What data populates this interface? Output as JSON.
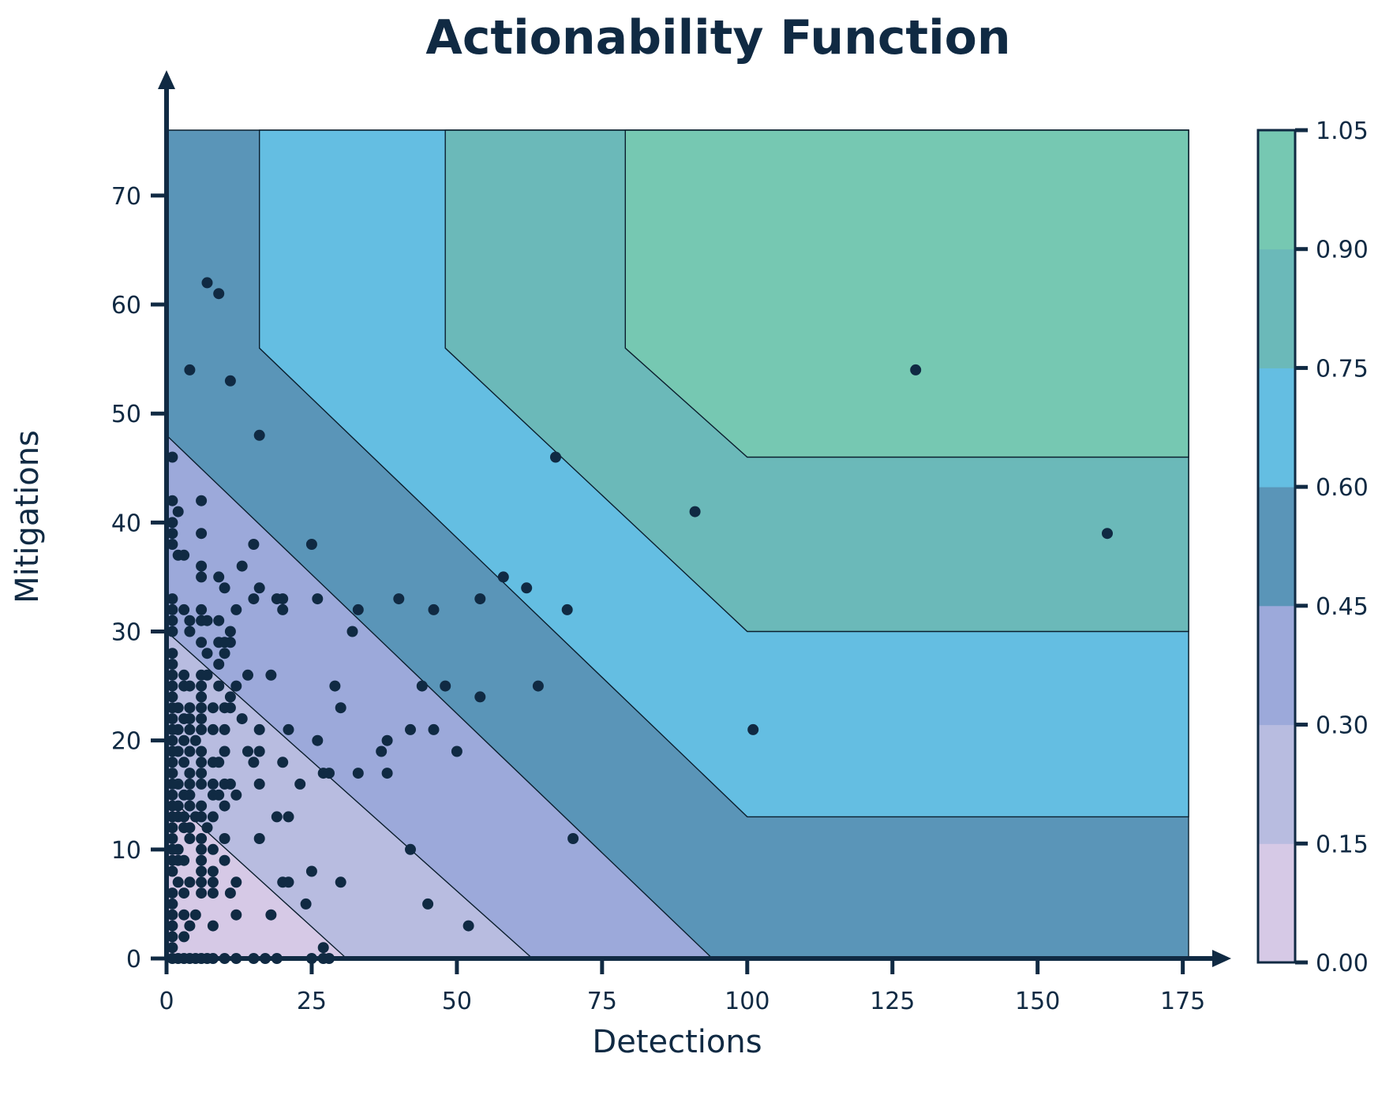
{
  "chart_data": {
    "type": "contour",
    "title": "Actionability Function",
    "xlabel": "Detections",
    "ylabel": "Mitigations",
    "xlim": [
      0,
      176
    ],
    "ylim": [
      0,
      76
    ],
    "x_ticks": [
      "0",
      "25",
      "50",
      "75",
      "100",
      "125",
      "150",
      "175"
    ],
    "y_ticks": [
      "0",
      "10",
      "20",
      "30",
      "40",
      "50",
      "60",
      "70"
    ],
    "colorbar": {
      "ticks": [
        "0.00",
        "0.15",
        "0.30",
        "0.45",
        "0.60",
        "0.75",
        "0.90",
        "1.05"
      ],
      "colors": [
        "#d6c9e6",
        "#b8bce0",
        "#9ca9da",
        "#5a95b8",
        "#64bee2",
        "#6bb9b9",
        "#76c8b2"
      ]
    },
    "contour_levels": [
      {
        "level": "0.00-0.15",
        "color": "#d6c9e6",
        "polygon": [
          [
            0,
            0
          ],
          [
            31,
            0
          ],
          [
            0,
            15
          ]
        ]
      },
      {
        "level": "0.15-0.30",
        "color": "#b8bce0",
        "polygon": [
          [
            0,
            0
          ],
          [
            63,
            0
          ],
          [
            0,
            30
          ]
        ]
      },
      {
        "level": "0.30-0.45",
        "color": "#9ca9da",
        "polygon": [
          [
            0,
            0
          ],
          [
            94,
            0
          ],
          [
            0,
            48
          ]
        ]
      },
      {
        "level": "0.45-0.60",
        "color": "#5a95b8",
        "polygon": [
          [
            0,
            0
          ],
          [
            176,
            0
          ],
          [
            176,
            76
          ],
          [
            0,
            76
          ]
        ]
      },
      {
        "level": "0.60-0.75",
        "color": "#64bee2",
        "polygon": [
          [
            16,
            76
          ],
          [
            16,
            56
          ],
          [
            100,
            13
          ],
          [
            176,
            13
          ],
          [
            176,
            76
          ]
        ]
      },
      {
        "level": "0.75-0.90",
        "color": "#6bb9b9",
        "polygon": [
          [
            48,
            76
          ],
          [
            48,
            56
          ],
          [
            100,
            30
          ],
          [
            176,
            30
          ],
          [
            176,
            76
          ]
        ]
      },
      {
        "level": "0.90-1.05",
        "color": "#76c8b2",
        "polygon": [
          [
            79,
            76
          ],
          [
            79,
            56
          ],
          [
            100,
            46
          ],
          [
            176,
            46
          ],
          [
            176,
            76
          ]
        ]
      }
    ],
    "points": [
      [
        7,
        62
      ],
      [
        9,
        61
      ],
      [
        4,
        54
      ],
      [
        11,
        53
      ],
      [
        16,
        48
      ],
      [
        1,
        46
      ],
      [
        1,
        42
      ],
      [
        2,
        41
      ],
      [
        6,
        42
      ],
      [
        1,
        40
      ],
      [
        1,
        39
      ],
      [
        6,
        39
      ],
      [
        1,
        38
      ],
      [
        2,
        37
      ],
      [
        3,
        37
      ],
      [
        15,
        38
      ],
      [
        25,
        38
      ],
      [
        13,
        36
      ],
      [
        6,
        36
      ],
      [
        9,
        35
      ],
      [
        6,
        35
      ],
      [
        10,
        34
      ],
      [
        16,
        34
      ],
      [
        1,
        33
      ],
      [
        15,
        33
      ],
      [
        19,
        33
      ],
      [
        20,
        33
      ],
      [
        26,
        33
      ],
      [
        40,
        33
      ],
      [
        54,
        33
      ],
      [
        58,
        35
      ],
      [
        62,
        34
      ],
      [
        1,
        32
      ],
      [
        3,
        32
      ],
      [
        6,
        32
      ],
      [
        12,
        32
      ],
      [
        20,
        32
      ],
      [
        33,
        32
      ],
      [
        46,
        32
      ],
      [
        69,
        32
      ],
      [
        67,
        46
      ],
      [
        91,
        41
      ],
      [
        129,
        54
      ],
      [
        162,
        39
      ],
      [
        1,
        31
      ],
      [
        4,
        31
      ],
      [
        6,
        31
      ],
      [
        7,
        31
      ],
      [
        9,
        31
      ],
      [
        1,
        30
      ],
      [
        4,
        30
      ],
      [
        11,
        30
      ],
      [
        32,
        30
      ],
      [
        6,
        29
      ],
      [
        9,
        29
      ],
      [
        10,
        29
      ],
      [
        11,
        29
      ],
      [
        1,
        28
      ],
      [
        7,
        28
      ],
      [
        10,
        28
      ],
      [
        1,
        27
      ],
      [
        9,
        27
      ],
      [
        1,
        26
      ],
      [
        3,
        26
      ],
      [
        6,
        26
      ],
      [
        7,
        26
      ],
      [
        14,
        26
      ],
      [
        18,
        26
      ],
      [
        1,
        25
      ],
      [
        3,
        25
      ],
      [
        4,
        25
      ],
      [
        6,
        25
      ],
      [
        9,
        25
      ],
      [
        12,
        25
      ],
      [
        29,
        25
      ],
      [
        44,
        25
      ],
      [
        48,
        25
      ],
      [
        64,
        25
      ],
      [
        1,
        24
      ],
      [
        6,
        24
      ],
      [
        11,
        24
      ],
      [
        54,
        24
      ],
      [
        1,
        23
      ],
      [
        2,
        23
      ],
      [
        4,
        23
      ],
      [
        6,
        23
      ],
      [
        8,
        23
      ],
      [
        10,
        23
      ],
      [
        11,
        23
      ],
      [
        30,
        23
      ],
      [
        1,
        22
      ],
      [
        3,
        22
      ],
      [
        4,
        22
      ],
      [
        6,
        22
      ],
      [
        13,
        22
      ],
      [
        1,
        21
      ],
      [
        2,
        21
      ],
      [
        4,
        21
      ],
      [
        6,
        21
      ],
      [
        8,
        21
      ],
      [
        10,
        21
      ],
      [
        16,
        21
      ],
      [
        21,
        21
      ],
      [
        42,
        21
      ],
      [
        46,
        21
      ],
      [
        101,
        21
      ],
      [
        1,
        20
      ],
      [
        3,
        20
      ],
      [
        5,
        20
      ],
      [
        26,
        20
      ],
      [
        38,
        20
      ],
      [
        1,
        19
      ],
      [
        2,
        19
      ],
      [
        4,
        19
      ],
      [
        6,
        19
      ],
      [
        10,
        19
      ],
      [
        14,
        19
      ],
      [
        16,
        19
      ],
      [
        37,
        19
      ],
      [
        50,
        19
      ],
      [
        1,
        18
      ],
      [
        3,
        18
      ],
      [
        6,
        18
      ],
      [
        8,
        18
      ],
      [
        9,
        18
      ],
      [
        15,
        18
      ],
      [
        20,
        18
      ],
      [
        1,
        17
      ],
      [
        4,
        17
      ],
      [
        6,
        17
      ],
      [
        27,
        17
      ],
      [
        28,
        17
      ],
      [
        33,
        17
      ],
      [
        38,
        17
      ],
      [
        1,
        16
      ],
      [
        2,
        16
      ],
      [
        4,
        16
      ],
      [
        6,
        16
      ],
      [
        8,
        16
      ],
      [
        10,
        16
      ],
      [
        11,
        16
      ],
      [
        16,
        16
      ],
      [
        23,
        16
      ],
      [
        1,
        15
      ],
      [
        3,
        15
      ],
      [
        4,
        15
      ],
      [
        8,
        15
      ],
      [
        9,
        15
      ],
      [
        12,
        15
      ],
      [
        1,
        14
      ],
      [
        2,
        14
      ],
      [
        4,
        14
      ],
      [
        6,
        14
      ],
      [
        10,
        14
      ],
      [
        1,
        13
      ],
      [
        2,
        13
      ],
      [
        3,
        13
      ],
      [
        5,
        13
      ],
      [
        6,
        13
      ],
      [
        8,
        13
      ],
      [
        19,
        13
      ],
      [
        21,
        13
      ],
      [
        1,
        12
      ],
      [
        3,
        12
      ],
      [
        4,
        12
      ],
      [
        7,
        12
      ],
      [
        1,
        11
      ],
      [
        4,
        11
      ],
      [
        6,
        11
      ],
      [
        10,
        11
      ],
      [
        16,
        11
      ],
      [
        70,
        11
      ],
      [
        1,
        10
      ],
      [
        2,
        10
      ],
      [
        6,
        10
      ],
      [
        8,
        10
      ],
      [
        42,
        10
      ],
      [
        1,
        9
      ],
      [
        2,
        9
      ],
      [
        3,
        9
      ],
      [
        6,
        9
      ],
      [
        10,
        9
      ],
      [
        1,
        8
      ],
      [
        6,
        8
      ],
      [
        8,
        8
      ],
      [
        25,
        8
      ],
      [
        2,
        7
      ],
      [
        4,
        7
      ],
      [
        6,
        7
      ],
      [
        8,
        7
      ],
      [
        12,
        7
      ],
      [
        20,
        7
      ],
      [
        21,
        7
      ],
      [
        30,
        7
      ],
      [
        1,
        6
      ],
      [
        3,
        6
      ],
      [
        6,
        6
      ],
      [
        8,
        6
      ],
      [
        11,
        6
      ],
      [
        1,
        5
      ],
      [
        24,
        5
      ],
      [
        45,
        5
      ],
      [
        1,
        4
      ],
      [
        3,
        4
      ],
      [
        5,
        4
      ],
      [
        12,
        4
      ],
      [
        18,
        4
      ],
      [
        1,
        3
      ],
      [
        4,
        3
      ],
      [
        8,
        3
      ],
      [
        52,
        3
      ],
      [
        1,
        2
      ],
      [
        3,
        2
      ],
      [
        1,
        1
      ],
      [
        27,
        1
      ],
      [
        1,
        0
      ],
      [
        2,
        0
      ],
      [
        3,
        0
      ],
      [
        4,
        0
      ],
      [
        5,
        0
      ],
      [
        6,
        0
      ],
      [
        7,
        0
      ],
      [
        8,
        0
      ],
      [
        10,
        0
      ],
      [
        12,
        0
      ],
      [
        15,
        0
      ],
      [
        17,
        0
      ],
      [
        19,
        0
      ],
      [
        25,
        0
      ],
      [
        27,
        0
      ],
      [
        28,
        0
      ]
    ]
  }
}
